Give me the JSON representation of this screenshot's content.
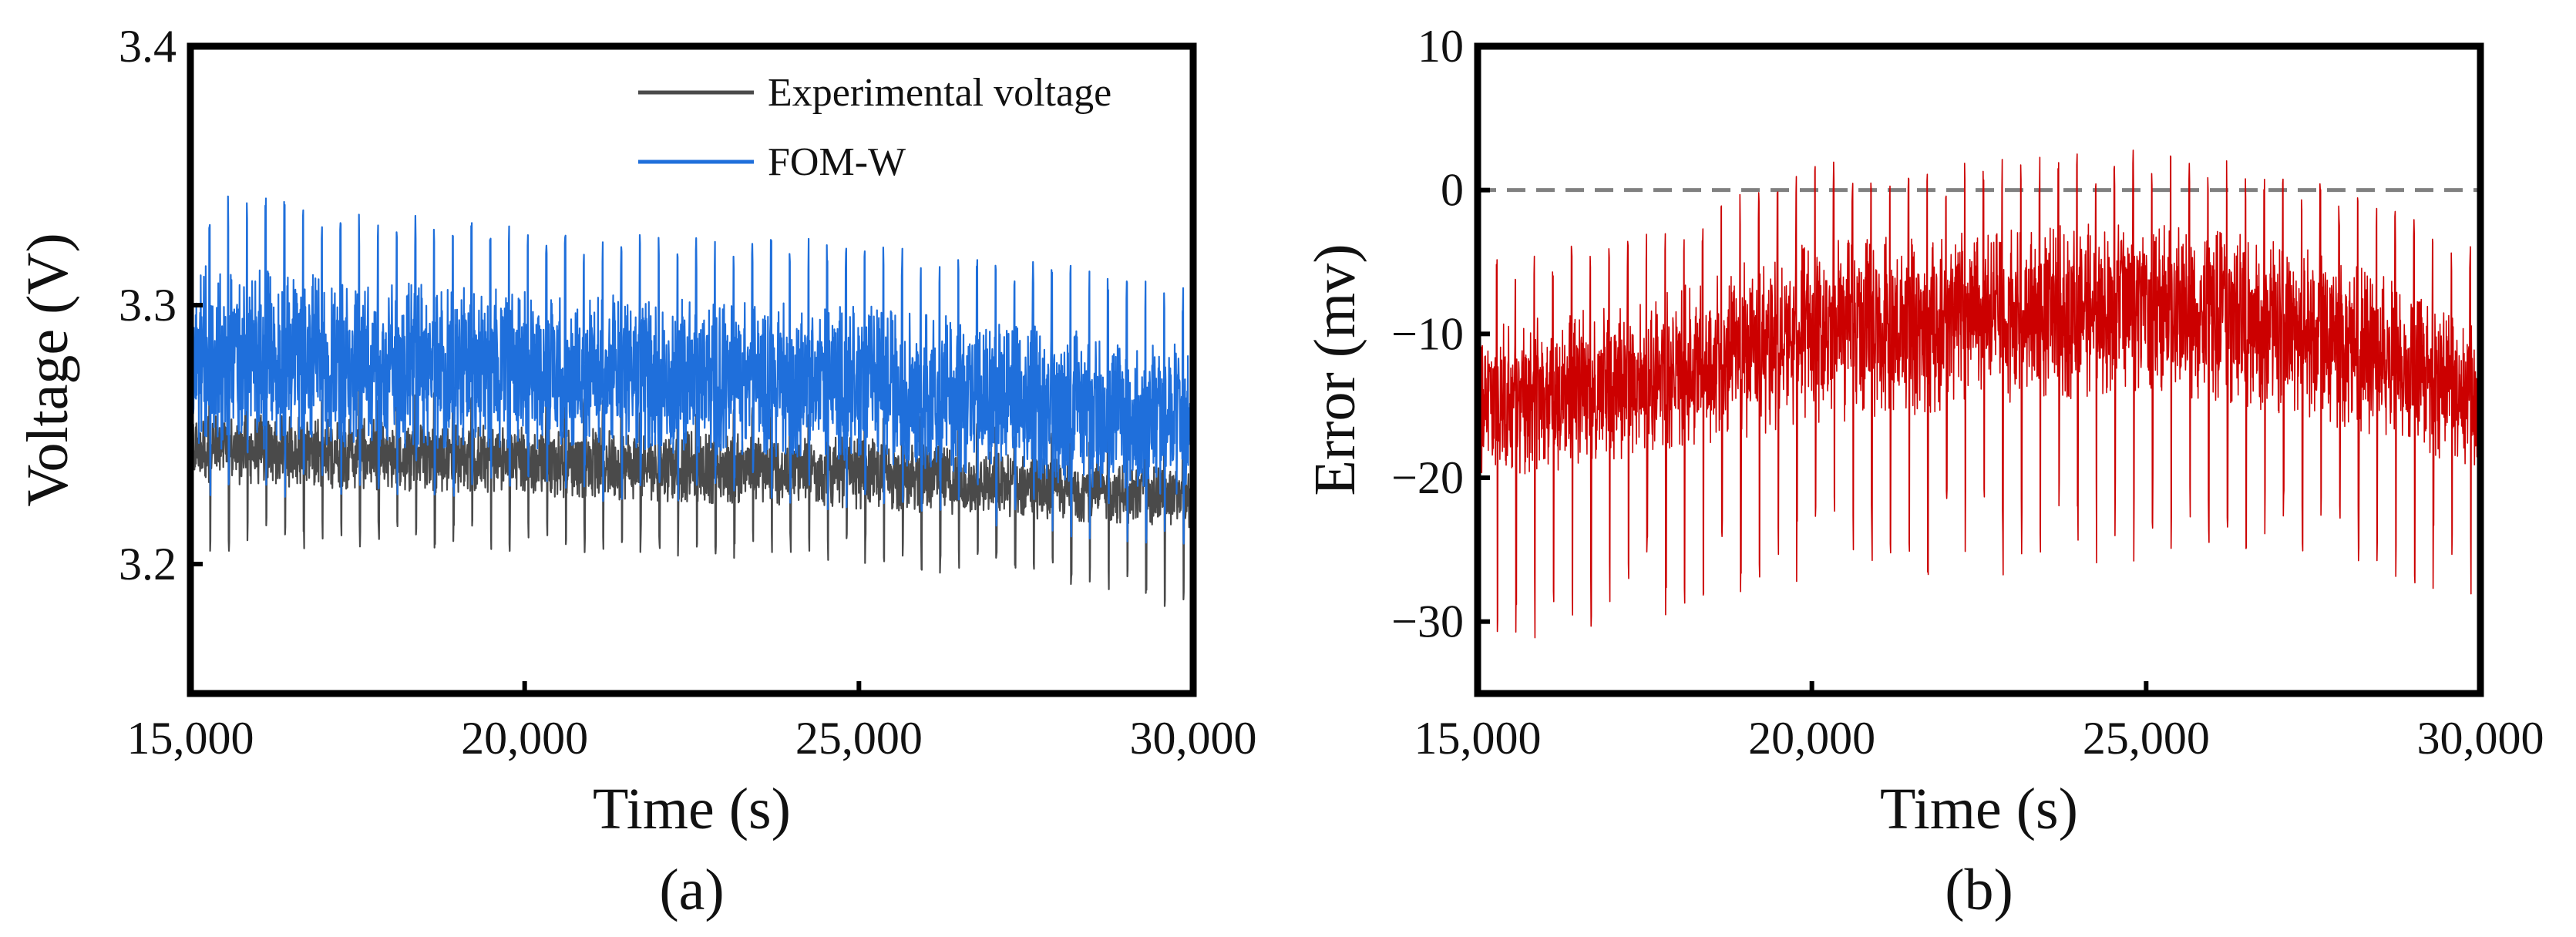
{
  "chart_data": [
    {
      "type": "line",
      "panel_label": "(a)",
      "xlabel": "Time (s)",
      "ylabel": "Voltage (V)",
      "xlim": [
        15000,
        30000
      ],
      "ylim": [
        3.15,
        3.4
      ],
      "x_ticks": [
        15000,
        20000,
        25000,
        30000
      ],
      "x_tick_labels": [
        "15,000",
        "20,000",
        "25,000",
        "30,000"
      ],
      "y_ticks": [
        3.2,
        3.3,
        3.4
      ],
      "y_tick_labels": [
        "3.2",
        "3.3",
        "3.4"
      ],
      "legend_position": "top-right",
      "grid": false,
      "series": [
        {
          "name": "Experimental voltage",
          "color": "#4a4a4a",
          "pulse_period_s": 280,
          "upper_envelope": {
            "x": [
              15000,
              20000,
              25000,
              30000
            ],
            "y": [
              3.27,
              3.265,
              3.26,
              3.245
            ]
          },
          "baseline": {
            "x": [
              15000,
              20000,
              25000,
              30000
            ],
            "y": [
              3.245,
              3.24,
              3.235,
              3.225
            ]
          },
          "lower_envelope": {
            "x": [
              15000,
              20000,
              25000,
              30000
            ],
            "y": [
              3.205,
              3.205,
              3.2,
              3.18
            ]
          }
        },
        {
          "name": "FOM-W",
          "color": "#1f6fdb",
          "pulse_period_s": 280,
          "upper_envelope": {
            "x": [
              15000,
              20000,
              25000,
              30000
            ],
            "y": [
              3.345,
              3.33,
              3.325,
              3.31
            ]
          },
          "baseline": {
            "x": [
              15000,
              20000,
              25000,
              30000
            ],
            "y": [
              3.28,
              3.275,
              3.27,
              3.255
            ]
          },
          "lower_envelope": {
            "x": [
              15000,
              20000,
              25000,
              30000
            ],
            "y": [
              3.225,
              3.225,
              3.22,
              3.205
            ]
          }
        }
      ]
    },
    {
      "type": "line",
      "panel_label": "(b)",
      "xlabel": "Time (s)",
      "ylabel": "Error (mv)",
      "xlim": [
        15000,
        30000
      ],
      "ylim": [
        -35,
        10
      ],
      "x_ticks": [
        15000,
        20000,
        25000,
        30000
      ],
      "x_tick_labels": [
        "15,000",
        "20,000",
        "25,000",
        "30,000"
      ],
      "y_ticks": [
        -30,
        -20,
        -10,
        0,
        10
      ],
      "y_tick_labels": [
        "−30",
        "−20",
        "−10",
        "0",
        "10"
      ],
      "reference_line": {
        "y": 0,
        "style": "dashed",
        "color": "#808080"
      },
      "grid": false,
      "series": [
        {
          "name": "",
          "color": "#cc0000",
          "pulse_period_s": 280,
          "baseline": {
            "x": [
              15000,
              17500,
              20000,
              22500,
              25000,
              27500,
              30000
            ],
            "y": [
              -15,
              -13,
              -10,
              -9,
              -8,
              -10,
              -14
            ]
          },
          "upper_envelope": {
            "x": [
              15000,
              17500,
              20000,
              22500,
              25000,
              27500,
              30000
            ],
            "y": [
              -5,
              -3,
              2,
              2,
              3,
              1,
              -4
            ]
          },
          "lower_envelope": {
            "x": [
              15000,
              17500,
              20000,
              22500,
              25000,
              27500,
              30000
            ],
            "y": [
              -34,
              -30,
              -27,
              -27,
              -26,
              -26,
              -29
            ]
          }
        }
      ]
    }
  ]
}
